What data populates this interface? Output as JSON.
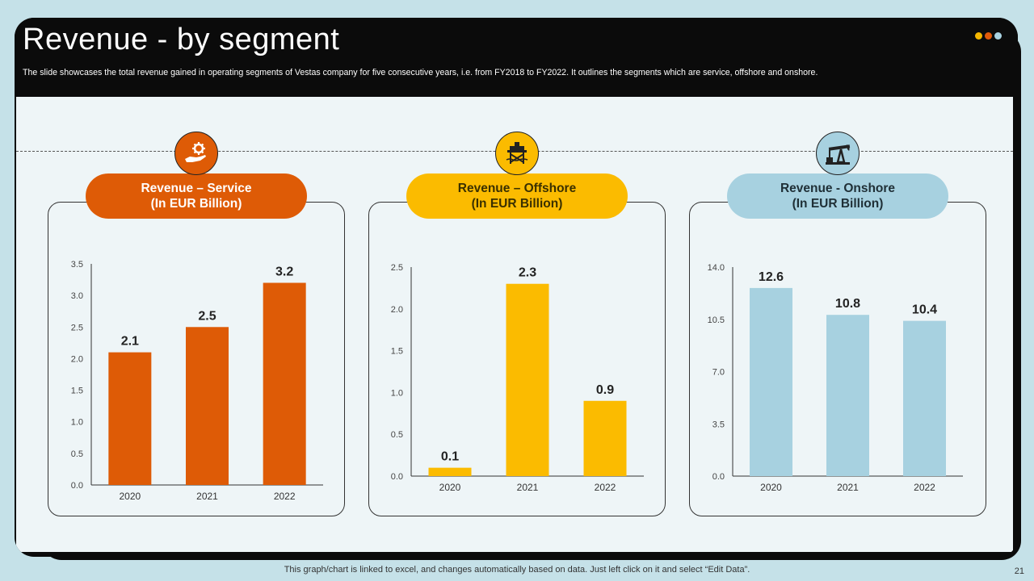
{
  "header": {
    "title": "Revenue - by segment",
    "subtitle": "The slide showcases the total revenue gained in operating segments of Vestas company for five  consecutive years, i.e. from FY2018 to FY2022. It outlines the segments which are service, offshore and onshore.",
    "dots": [
      "#f5b700",
      "#e05a0a",
      "#a9d3e2"
    ]
  },
  "colors": {
    "service": "#de5b06",
    "offshore": "#fbbb00",
    "onshore": "#a7d1e0"
  },
  "panels": [
    {
      "line1": "Revenue – Service",
      "line2": "(In EUR Billion)",
      "icon": "hand-gear-icon"
    },
    {
      "line1": "Revenue – Offshore",
      "line2": "(In EUR Billion)",
      "icon": "offshore-platform-icon"
    },
    {
      "line1": "Revenue - Onshore",
      "line2": "(In EUR Billion)",
      "icon": "oil-pump-icon"
    }
  ],
  "chart_data": [
    {
      "type": "bar",
      "categories": [
        "2020",
        "2021",
        "2022"
      ],
      "values": [
        2.1,
        2.5,
        3.2
      ],
      "value_labels": [
        "2.1",
        "2.5",
        "3.2"
      ],
      "ylim": [
        0,
        3.5
      ],
      "yticks": [
        "0.0",
        "0.5",
        "1.0",
        "1.5",
        "2.0",
        "2.5",
        "3.0",
        "3.5"
      ],
      "title": "Revenue – Service (In EUR Billion)"
    },
    {
      "type": "bar",
      "categories": [
        "2020",
        "2021",
        "2022"
      ],
      "values": [
        0.1,
        2.3,
        0.9
      ],
      "value_labels": [
        "0.1",
        "2.3",
        "0.9"
      ],
      "ylim": [
        0,
        2.5
      ],
      "yticks": [
        "0.0",
        "0.5",
        "1.0",
        "1.5",
        "2.0",
        "2.5"
      ],
      "title": "Revenue – Offshore (In EUR Billion)"
    },
    {
      "type": "bar",
      "categories": [
        "2020",
        "2021",
        "2022"
      ],
      "values": [
        12.6,
        10.8,
        10.4
      ],
      "value_labels": [
        "12.6",
        "10.8",
        "10.4"
      ],
      "ylim": [
        0,
        14
      ],
      "yticks": [
        "0.0",
        "3.5",
        "7.0",
        "10.5",
        "14.0"
      ],
      "title": "Revenue - Onshore (In EUR Billion)"
    }
  ],
  "footer": {
    "note": "This graph/chart is linked to excel,  and changes automatically based on data. Just left click on it and select “Edit Data”.",
    "page": "21"
  }
}
